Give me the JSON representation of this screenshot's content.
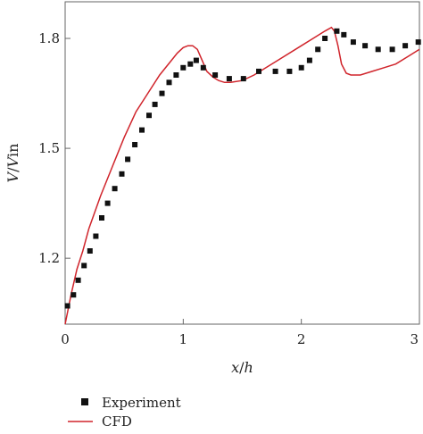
{
  "chart_data": {
    "type": "scatter",
    "xlabel_parts": [
      "x",
      "/",
      "h"
    ],
    "ylabel_parts": [
      "V",
      "/",
      "V",
      "in"
    ],
    "xlim": [
      0,
      3
    ],
    "ylim": [
      1.02,
      1.9
    ],
    "xticks": [
      0,
      1,
      2,
      3
    ],
    "xtick_labels": [
      "0",
      "1",
      "2",
      "3"
    ],
    "yticks": [
      1.2,
      1.5,
      1.8
    ],
    "ytick_labels": [
      "1.2",
      "1.5",
      "1.8"
    ],
    "grid": false,
    "legend_placement": "bottom-left",
    "series": [
      {
        "name": "Experiment",
        "kind": "markers",
        "color": "#111111",
        "points": [
          [
            0.02,
            1.07
          ],
          [
            0.07,
            1.1
          ],
          [
            0.11,
            1.14
          ],
          [
            0.16,
            1.18
          ],
          [
            0.21,
            1.22
          ],
          [
            0.26,
            1.26
          ],
          [
            0.31,
            1.31
          ],
          [
            0.36,
            1.35
          ],
          [
            0.42,
            1.39
          ],
          [
            0.48,
            1.43
          ],
          [
            0.53,
            1.47
          ],
          [
            0.59,
            1.51
          ],
          [
            0.65,
            1.55
          ],
          [
            0.71,
            1.59
          ],
          [
            0.76,
            1.62
          ],
          [
            0.82,
            1.65
          ],
          [
            0.88,
            1.68
          ],
          [
            0.94,
            1.7
          ],
          [
            1.0,
            1.72
          ],
          [
            1.06,
            1.73
          ],
          [
            1.11,
            1.74
          ],
          [
            1.17,
            1.72
          ],
          [
            1.27,
            1.7
          ],
          [
            1.39,
            1.69
          ],
          [
            1.51,
            1.69
          ],
          [
            1.64,
            1.71
          ],
          [
            1.78,
            1.71
          ],
          [
            1.9,
            1.71
          ],
          [
            2.0,
            1.72
          ],
          [
            2.07,
            1.74
          ],
          [
            2.14,
            1.77
          ],
          [
            2.2,
            1.8
          ],
          [
            2.3,
            1.82
          ],
          [
            2.36,
            1.81
          ],
          [
            2.44,
            1.79
          ],
          [
            2.54,
            1.78
          ],
          [
            2.65,
            1.77
          ],
          [
            2.77,
            1.77
          ],
          [
            2.88,
            1.78
          ],
          [
            2.99,
            1.79
          ]
        ]
      },
      {
        "name": "CFD",
        "kind": "line",
        "color": "#d0242b",
        "points": [
          [
            0.0,
            1.02
          ],
          [
            0.05,
            1.1
          ],
          [
            0.1,
            1.17
          ],
          [
            0.15,
            1.22
          ],
          [
            0.2,
            1.28
          ],
          [
            0.3,
            1.37
          ],
          [
            0.4,
            1.45
          ],
          [
            0.5,
            1.53
          ],
          [
            0.6,
            1.6
          ],
          [
            0.7,
            1.65
          ],
          [
            0.8,
            1.7
          ],
          [
            0.9,
            1.74
          ],
          [
            0.95,
            1.76
          ],
          [
            1.0,
            1.775
          ],
          [
            1.04,
            1.78
          ],
          [
            1.08,
            1.78
          ],
          [
            1.12,
            1.77
          ],
          [
            1.16,
            1.74
          ],
          [
            1.2,
            1.71
          ],
          [
            1.25,
            1.695
          ],
          [
            1.3,
            1.685
          ],
          [
            1.35,
            1.68
          ],
          [
            1.4,
            1.68
          ],
          [
            1.5,
            1.685
          ],
          [
            1.6,
            1.7
          ],
          [
            1.8,
            1.74
          ],
          [
            2.0,
            1.78
          ],
          [
            2.1,
            1.8
          ],
          [
            2.2,
            1.82
          ],
          [
            2.255,
            1.83
          ],
          [
            2.28,
            1.82
          ],
          [
            2.31,
            1.78
          ],
          [
            2.34,
            1.73
          ],
          [
            2.38,
            1.705
          ],
          [
            2.42,
            1.7
          ],
          [
            2.5,
            1.7
          ],
          [
            2.6,
            1.71
          ],
          [
            2.7,
            1.72
          ],
          [
            2.8,
            1.73
          ],
          [
            2.9,
            1.75
          ],
          [
            3.0,
            1.77
          ]
        ]
      }
    ]
  }
}
